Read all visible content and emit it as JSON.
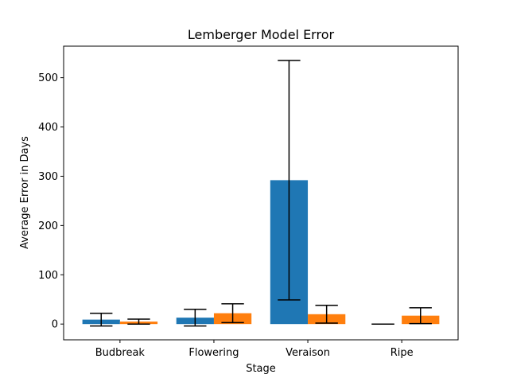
{
  "chart_data": {
    "type": "bar",
    "title": "Lemberger Model Error",
    "xlabel": "Stage",
    "ylabel": "Average Error in Days",
    "categories": [
      "Budbreak",
      "Flowering",
      "Veraison",
      "Ripe"
    ],
    "series": [
      {
        "color": "#1f77b4",
        "values": [
          9,
          13,
          292,
          0
        ],
        "error": [
          13,
          17,
          243,
          0
        ]
      },
      {
        "color": "#ff7f0e",
        "values": [
          5,
          22,
          20,
          17
        ],
        "error": [
          5,
          19,
          18,
          16
        ]
      }
    ],
    "yticks": [
      0,
      100,
      200,
      300,
      400,
      500
    ],
    "ylim": [
      -32,
      564
    ],
    "grid": false,
    "legend": "none"
  }
}
